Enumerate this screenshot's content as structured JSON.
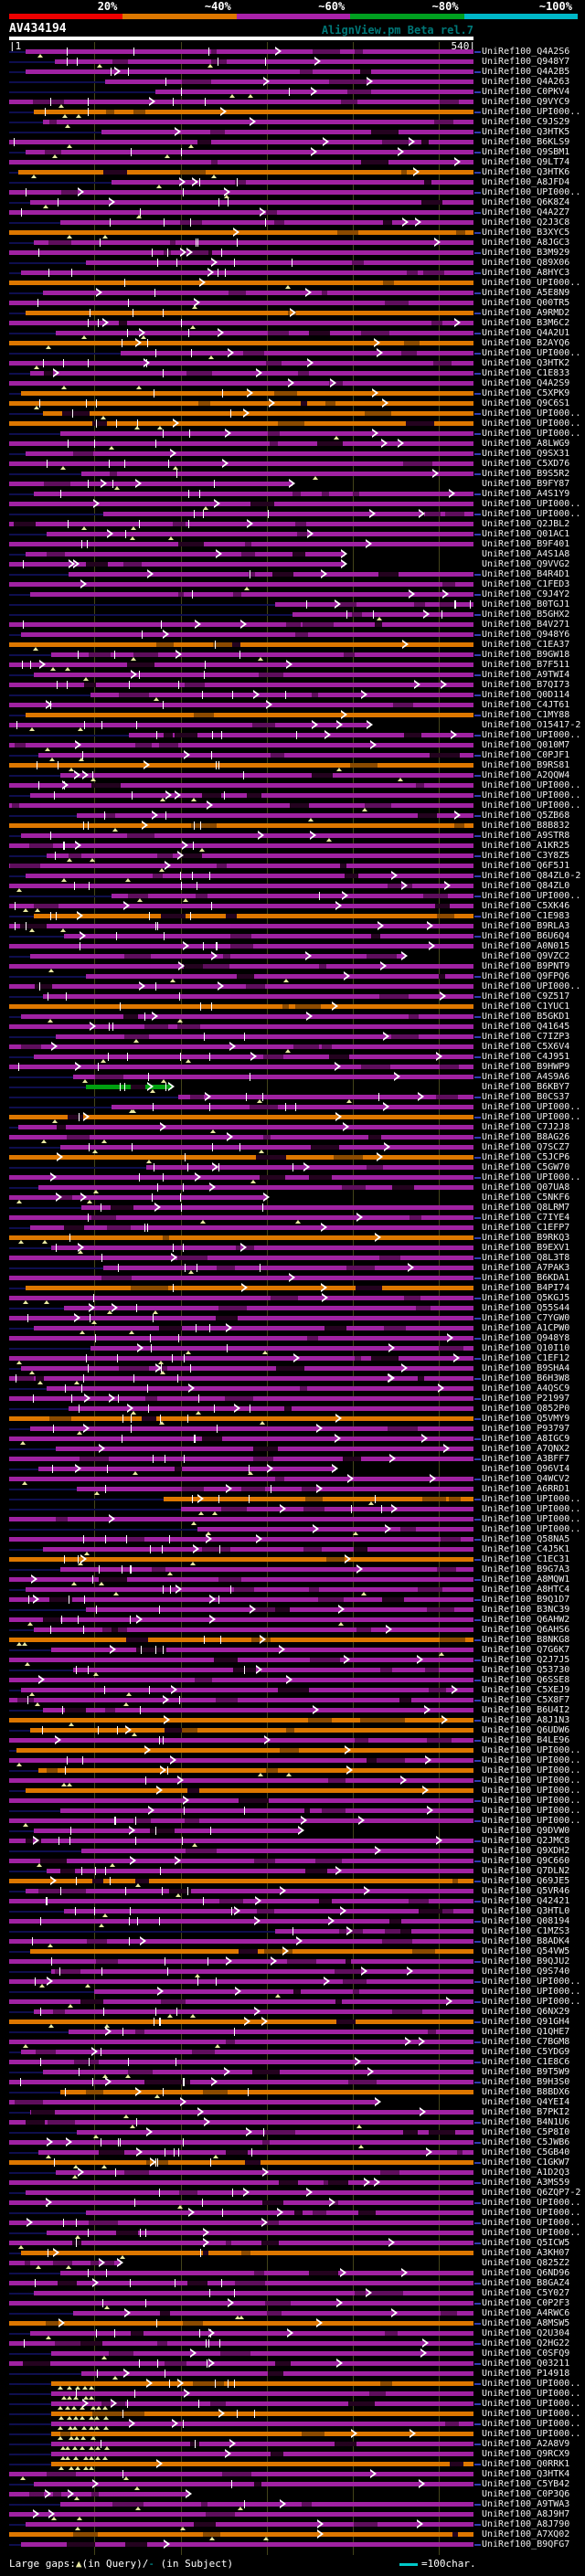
{
  "header": {
    "query": "AV434194",
    "subtitle": "AlignView.pm Beta rel.7"
  },
  "ruler": {
    "start_label": "|1",
    "end_label": "540|"
  },
  "legend": {
    "prefix": "Large gaps:",
    "query_marker": "▲",
    "query_text": "(in Query)/",
    "subject_marker": "-",
    "subject_text": " (in Subject)",
    "scalebar_label": "=100char."
  },
  "colors": {
    "background": "#000000",
    "grid": "#44441a",
    "query_bar": "#ffffff",
    "lead_line": "#0e0e4e",
    "right_extension": "#2d3cb0",
    "gap_triangle": "#e9e9a0",
    "mismatch_tick": "#ffffff",
    "subtitle": "#007878",
    "legend_scalebar": "#00c8c8"
  },
  "chart_data": {
    "type": "alignment-map",
    "title": "AV434194",
    "query_length": 540,
    "x_axis": {
      "start": 1,
      "end": 540,
      "tick_interval": 100,
      "grid": true
    },
    "identity_legend": [
      {
        "label": "20%",
        "color": "#ee0000"
      },
      {
        "label": "~40%",
        "color": "#dd7700"
      },
      {
        "label": "~60%",
        "color": "#aa22aa"
      },
      {
        "label": "~80%",
        "color": "#00a020"
      },
      {
        "label": "~100%",
        "color": "#00b8c8"
      }
    ],
    "bucket_colors": {
      "40": "#dd7700",
      "60": "#a022a2",
      "80": "#00a010"
    },
    "bucket_dark": {
      "40": "#8a4a00",
      "60": "#5e0e5c",
      "80": "#006014"
    },
    "id_prefix": "UniRef100_",
    "hit_fields": [
      "uniref_suffix",
      "query_start",
      "query_end",
      "identity_bucket"
    ],
    "hits": [
      [
        "Q4A2S6",
        20,
        540,
        60
      ],
      [
        "Q948Y7",
        54,
        540,
        60
      ],
      [
        "Q4A2B5",
        20,
        540,
        60
      ],
      [
        "Q4A263",
        112,
        540,
        60
      ],
      [
        "C0PKV4",
        171,
        540,
        60
      ],
      [
        "Q9VYC9",
        1,
        540,
        60
      ],
      [
        "UPI000..",
        30,
        540,
        40
      ],
      [
        "C9JS29",
        40,
        540,
        60
      ],
      [
        "Q3HTK5",
        108,
        540,
        60
      ],
      [
        "B6KLS9",
        1,
        540,
        60
      ],
      [
        "Q9SBM1",
        20,
        540,
        60
      ],
      [
        "Q9LT74",
        1,
        540,
        60
      ],
      [
        "Q3HTK6",
        12,
        540,
        40
      ],
      [
        "A8JFD4",
        120,
        540,
        60
      ],
      [
        "UPI000..",
        1,
        540,
        60
      ],
      [
        "Q6K8Z4",
        25,
        540,
        60
      ],
      [
        "Q4A2Z7",
        1,
        540,
        60
      ],
      [
        "Q2J3C8",
        60,
        540,
        60
      ],
      [
        "B3XYC5",
        1,
        540,
        40
      ],
      [
        "A8JGC3",
        30,
        540,
        60
      ],
      [
        "B3M929",
        1,
        540,
        60
      ],
      [
        "Q89X06",
        90,
        540,
        60
      ],
      [
        "A8HYC3",
        15,
        540,
        60
      ],
      [
        "UPI000..",
        1,
        540,
        40
      ],
      [
        "A5E8N9",
        40,
        540,
        60
      ],
      [
        "Q00TR5",
        1,
        540,
        60
      ],
      [
        "A9RMD2",
        20,
        540,
        40
      ],
      [
        "B3M6C2",
        1,
        540,
        60
      ],
      [
        "Q4A2U1",
        55,
        540,
        60
      ],
      [
        "B2AYQ6",
        1,
        540,
        40
      ],
      [
        "UPI000..",
        130,
        540,
        60
      ],
      [
        "Q3HTK2",
        1,
        540,
        60
      ],
      [
        "C1E833",
        25,
        540,
        60
      ],
      [
        "Q4A2S9",
        1,
        540,
        60
      ],
      [
        "C5XPK9",
        15,
        540,
        40
      ],
      [
        "Q9C6S1",
        1,
        540,
        40
      ],
      [
        "UPI000..",
        40,
        540,
        40
      ],
      [
        "UPI000..",
        1,
        540,
        40
      ],
      [
        "UPI000..",
        60,
        540,
        60
      ],
      [
        "A8LWG9",
        1,
        540,
        60
      ],
      [
        "Q9SX31",
        20,
        540,
        60
      ],
      [
        "C5XD76",
        1,
        540,
        60
      ],
      [
        "B9S5R2",
        85,
        540,
        60
      ],
      [
        "B9FY87",
        1,
        330,
        60
      ],
      [
        "A4S1Y9",
        30,
        540,
        60
      ],
      [
        "UPI000..",
        1,
        540,
        60
      ],
      [
        "UPI000..",
        110,
        540,
        60
      ],
      [
        "Q2JBL2",
        1,
        540,
        60
      ],
      [
        "Q01AC1",
        45,
        540,
        60
      ],
      [
        "B9F401",
        1,
        540,
        60
      ],
      [
        "A4S1A8",
        20,
        390,
        60
      ],
      [
        "Q9VVG2",
        1,
        390,
        60
      ],
      [
        "B4R4D1",
        70,
        540,
        60
      ],
      [
        "C1FED3",
        1,
        540,
        60
      ],
      [
        "C9J4Y2",
        25,
        540,
        60
      ],
      [
        "B0TGJ1",
        310,
        540,
        60
      ],
      [
        "B5GHX2",
        330,
        540,
        60
      ],
      [
        "B4V271",
        1,
        540,
        60
      ],
      [
        "Q948Y6",
        15,
        540,
        60
      ],
      [
        "C1EA37",
        1,
        540,
        40
      ],
      [
        "B9GW18",
        50,
        540,
        60
      ],
      [
        "B7F511",
        1,
        540,
        60
      ],
      [
        "A9TWI4",
        30,
        540,
        60
      ],
      [
        "B7QI73",
        1,
        540,
        60
      ],
      [
        "Q0D114",
        95,
        540,
        60
      ],
      [
        "C4JT61",
        1,
        540,
        60
      ],
      [
        "C1MY88",
        20,
        540,
        40
      ],
      [
        "O15417-2",
        1,
        420,
        60
      ],
      [
        "UPI000..",
        140,
        540,
        60
      ],
      [
        "Q010M7",
        1,
        540,
        60
      ],
      [
        "C0PJF1",
        35,
        540,
        60
      ],
      [
        "B9RS81",
        1,
        540,
        40
      ],
      [
        "A2QQW4",
        60,
        540,
        60
      ],
      [
        "UPI000..",
        1,
        540,
        60
      ],
      [
        "UPI000..",
        25,
        540,
        60
      ],
      [
        "UPI000..",
        1,
        540,
        60
      ],
      [
        "Q5ZB68",
        80,
        540,
        60
      ],
      [
        "B8B832",
        1,
        540,
        40
      ],
      [
        "A9STR8",
        15,
        540,
        60
      ],
      [
        "A1KR25",
        1,
        540,
        60
      ],
      [
        "C3Y8Z5",
        45,
        540,
        60
      ],
      [
        "Q6F5J1",
        1,
        540,
        60
      ],
      [
        "Q84ZL0-2",
        20,
        540,
        60
      ],
      [
        "Q84ZL0",
        1,
        540,
        60
      ],
      [
        "UPI000..",
        120,
        540,
        60
      ],
      [
        "C5XK46",
        1,
        540,
        60
      ],
      [
        "C1E983",
        30,
        540,
        40
      ],
      [
        "B9RLA3",
        1,
        540,
        60
      ],
      [
        "B6U6Q4",
        65,
        540,
        60
      ],
      [
        "A0N015",
        1,
        540,
        60
      ],
      [
        "Q9VZC2",
        25,
        460,
        60
      ],
      [
        "B9PNT9",
        1,
        540,
        60
      ],
      [
        "Q9FPQ6",
        90,
        540,
        60
      ],
      [
        "UPI000..",
        1,
        540,
        60
      ],
      [
        "C9Z517",
        40,
        540,
        60
      ],
      [
        "C1YUC1",
        1,
        540,
        40
      ],
      [
        "B5GKD1",
        15,
        540,
        60
      ],
      [
        "Q41645",
        1,
        540,
        60
      ],
      [
        "C7IZP3",
        55,
        540,
        60
      ],
      [
        "C5X6V4",
        1,
        540,
        60
      ],
      [
        "C4J951",
        30,
        540,
        60
      ],
      [
        "B9HWP9",
        1,
        540,
        60
      ],
      [
        "A4S9A6",
        75,
        540,
        60
      ],
      [
        "B6KBY7",
        90,
        190,
        80
      ],
      [
        "B0CS37",
        197,
        540,
        60
      ],
      [
        "UPI000..",
        120,
        540,
        60
      ],
      [
        "UPI000..",
        1,
        540,
        40
      ],
      [
        "C7J2J8",
        12,
        540,
        60
      ],
      [
        "B8AG26",
        1,
        540,
        60
      ],
      [
        "Q7SCZ7",
        60,
        540,
        60
      ],
      [
        "C5JCP6",
        1,
        540,
        40
      ],
      [
        "C5GW70",
        160,
        540,
        60
      ],
      [
        "UPI000..",
        1,
        540,
        60
      ],
      [
        "Q07UA8",
        35,
        540,
        60
      ],
      [
        "C5NKF6",
        1,
        300,
        60
      ],
      [
        "Q8LRM7",
        85,
        540,
        60
      ],
      [
        "C7IYE4",
        1,
        540,
        60
      ],
      [
        "C1EFP7",
        25,
        540,
        60
      ],
      [
        "B9RKQ3",
        1,
        540,
        40
      ],
      [
        "B9EXV1",
        50,
        540,
        60
      ],
      [
        "Q8L3T8",
        1,
        540,
        60
      ],
      [
        "A7PAK3",
        110,
        540,
        60
      ],
      [
        "B6KDA1",
        1,
        540,
        60
      ],
      [
        "B4PI74",
        20,
        540,
        40
      ],
      [
        "Q5KGJ5",
        1,
        540,
        60
      ],
      [
        "Q55S44",
        65,
        540,
        60
      ],
      [
        "C7YGW0",
        1,
        540,
        60
      ],
      [
        "A1CPW0",
        30,
        540,
        60
      ],
      [
        "Q948Y8",
        1,
        540,
        60
      ],
      [
        "Q10I10",
        95,
        540,
        60
      ],
      [
        "C1EF12",
        1,
        540,
        60
      ],
      [
        "B9SHA4",
        15,
        540,
        60
      ],
      [
        "B6H3W8",
        1,
        540,
        60
      ],
      [
        "A4QSC9",
        45,
        540,
        60
      ],
      [
        "P21997",
        1,
        540,
        60
      ],
      [
        "Q852P0",
        70,
        540,
        60
      ],
      [
        "Q5VMY9",
        1,
        540,
        40
      ],
      [
        "P93797",
        25,
        540,
        60
      ],
      [
        "A8IGC9",
        1,
        540,
        60
      ],
      [
        "A7QNX2",
        55,
        540,
        60
      ],
      [
        "A3BFF7",
        1,
        540,
        60
      ],
      [
        "Q96VI4",
        35,
        380,
        60
      ],
      [
        "Q4WCV2",
        1,
        540,
        60
      ],
      [
        "A6RRD1",
        80,
        540,
        60
      ],
      [
        "UPI000..",
        180,
        540,
        40
      ],
      [
        "UPI000..",
        200,
        540,
        60
      ],
      [
        "UPI000..",
        1,
        540,
        60
      ],
      [
        "UPI000..",
        220,
        540,
        60
      ],
      [
        "Q58NA5",
        1,
        540,
        60
      ],
      [
        "C4J5K1",
        40,
        540,
        60
      ],
      [
        "C1EC31",
        1,
        540,
        40
      ],
      [
        "B9G7A3",
        60,
        540,
        60
      ],
      [
        "A8MQW1",
        1,
        540,
        60
      ],
      [
        "A8HTC4",
        20,
        540,
        60
      ],
      [
        "B9Q1D7",
        1,
        540,
        60
      ],
      [
        "B3NC39",
        90,
        540,
        60
      ],
      [
        "Q6AHW2",
        1,
        540,
        60
      ],
      [
        "Q6AHS6",
        30,
        540,
        60
      ],
      [
        "B8NKG8",
        1,
        540,
        40
      ],
      [
        "Q7G6K7",
        50,
        540,
        60
      ],
      [
        "Q2J7J5",
        1,
        540,
        60
      ],
      [
        "Q53730",
        75,
        540,
        60
      ],
      [
        "Q6SSE8",
        1,
        540,
        60
      ],
      [
        "C5XEJ9",
        15,
        540,
        60
      ],
      [
        "C5X8F7",
        1,
        540,
        60
      ],
      [
        "B6U4I2",
        40,
        540,
        60
      ],
      [
        "A8J1N3",
        1,
        540,
        40
      ],
      [
        "Q6UDW6",
        25,
        540,
        40
      ],
      [
        "B4LE96",
        1,
        540,
        60
      ],
      [
        "UPI000..",
        10,
        540,
        40
      ],
      [
        "UPI000..",
        1,
        540,
        60
      ],
      [
        "UPI000..",
        35,
        540,
        40
      ],
      [
        "UPI000..",
        1,
        540,
        60
      ],
      [
        "UPI000..",
        20,
        540,
        40
      ],
      [
        "UPI000..",
        1,
        540,
        60
      ],
      [
        "UPI000..",
        60,
        540,
        60
      ],
      [
        "UPI000..",
        1,
        540,
        60
      ],
      [
        "Q9DVW0",
        30,
        340,
        60
      ],
      [
        "Q2JMC8",
        1,
        540,
        60
      ],
      [
        "Q9XDH2",
        85,
        540,
        60
      ],
      [
        "Q9C660",
        1,
        540,
        60
      ],
      [
        "Q7DLN2",
        45,
        540,
        60
      ],
      [
        "Q69JE5",
        1,
        540,
        40
      ],
      [
        "Q5VR46",
        20,
        540,
        60
      ],
      [
        "Q42421",
        1,
        540,
        60
      ],
      [
        "Q3HTL0",
        65,
        540,
        60
      ],
      [
        "Q08194",
        1,
        540,
        60
      ],
      [
        "C1MZS3",
        310,
        540,
        60
      ],
      [
        "B8ADK4",
        1,
        540,
        60
      ],
      [
        "Q54VW5",
        25,
        540,
        40
      ],
      [
        "B9QJU2",
        1,
        540,
        60
      ],
      [
        "Q9S740",
        50,
        540,
        60
      ],
      [
        "UPI000..",
        1,
        540,
        60
      ],
      [
        "UPI000..",
        100,
        540,
        60
      ],
      [
        "UPI000..",
        1,
        540,
        60
      ],
      [
        "Q6NX29",
        30,
        540,
        60
      ],
      [
        "Q91GH4",
        1,
        540,
        40
      ],
      [
        "Q1QHE7",
        70,
        540,
        60
      ],
      [
        "C7BGM8",
        1,
        540,
        60
      ],
      [
        "C5YDG9",
        15,
        540,
        60
      ],
      [
        "C1E8C6",
        1,
        540,
        60
      ],
      [
        "B9T5W9",
        40,
        540,
        60
      ],
      [
        "B9H3S0",
        1,
        540,
        60
      ],
      [
        "B8BDX6",
        60,
        540,
        40
      ],
      [
        "Q4YEI4",
        1,
        430,
        60
      ],
      [
        "B7PKI2",
        25,
        540,
        60
      ],
      [
        "B4N1U6",
        1,
        540,
        60
      ],
      [
        "C5P8I0",
        80,
        540,
        60
      ],
      [
        "C5JWB6",
        1,
        540,
        60
      ],
      [
        "C5GB40",
        35,
        540,
        60
      ],
      [
        "C1GKW7",
        1,
        540,
        40
      ],
      [
        "A1D2Q3",
        55,
        540,
        60
      ],
      [
        "A3MS59",
        1,
        540,
        60
      ],
      [
        "Q6ZQP7-2",
        20,
        540,
        60
      ],
      [
        "UPI000..",
        1,
        540,
        60
      ],
      [
        "UPI000..",
        90,
        540,
        60
      ],
      [
        "UPI000..",
        1,
        540,
        60
      ],
      [
        "UPI000..",
        45,
        540,
        60
      ],
      [
        "Q5ICW5",
        1,
        540,
        60
      ],
      [
        "A3KH07",
        15,
        540,
        40
      ],
      [
        "Q825Z2",
        1,
        130,
        60
      ],
      [
        "Q6ND96",
        60,
        540,
        60
      ],
      [
        "B8GAZ4",
        1,
        540,
        60
      ],
      [
        "C5Y027",
        30,
        540,
        60
      ],
      [
        "C0P2F3",
        1,
        540,
        60
      ],
      [
        "A4RWC6",
        75,
        540,
        60
      ],
      [
        "A8MSW5",
        1,
        540,
        40
      ],
      [
        "Q2U304",
        25,
        540,
        60
      ],
      [
        "Q2HG22",
        1,
        540,
        60
      ],
      [
        "C0SFQ9",
        50,
        540,
        60
      ],
      [
        "Q03211",
        1,
        540,
        60
      ],
      [
        "P14918",
        85,
        540,
        60
      ],
      [
        "UPI000..",
        50,
        540,
        40
      ],
      [
        "UPI000..",
        50,
        540,
        60
      ],
      [
        "UPI000..",
        50,
        540,
        60
      ],
      [
        "UPI000..",
        50,
        540,
        40
      ],
      [
        "UPI000..",
        50,
        540,
        60
      ],
      [
        "UPI000..",
        50,
        540,
        40
      ],
      [
        "A2A8V9",
        50,
        540,
        60
      ],
      [
        "Q9RCX9",
        50,
        540,
        60
      ],
      [
        "Q0RRK1",
        50,
        540,
        40
      ],
      [
        "Q3HTK4",
        1,
        540,
        60
      ],
      [
        "C5YB42",
        30,
        540,
        60
      ],
      [
        "C0P3Q6",
        1,
        210,
        60
      ],
      [
        "A9TWA3",
        60,
        540,
        60
      ],
      [
        "A8J9H7",
        1,
        540,
        60
      ],
      [
        "A8J790",
        20,
        540,
        60
      ],
      [
        "A7XQ02",
        1,
        540,
        40
      ],
      [
        "B9QFG7",
        15,
        540,
        60
      ]
    ]
  }
}
